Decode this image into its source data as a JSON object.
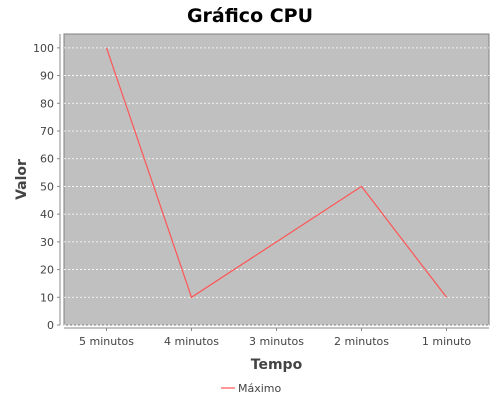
{
  "chart_data": {
    "type": "line",
    "title": "Gráfico CPU",
    "xlabel": "Tempo",
    "ylabel": "Valor",
    "categories": [
      "5 minutos",
      "4 minutos",
      "3 minutos",
      "2 minutos",
      "1 minuto"
    ],
    "series": [
      {
        "name": "Máximo",
        "values": [
          100,
          10,
          30,
          50,
          10
        ],
        "color": "#ff5555"
      }
    ],
    "ylim": [
      0,
      105
    ],
    "yticks": [
      0,
      10,
      20,
      30,
      40,
      50,
      60,
      70,
      80,
      90,
      100
    ],
    "grid": true,
    "legend_position": "bottom",
    "plot_background": "#c0c0c0",
    "gridline_color": "#ffffff"
  }
}
